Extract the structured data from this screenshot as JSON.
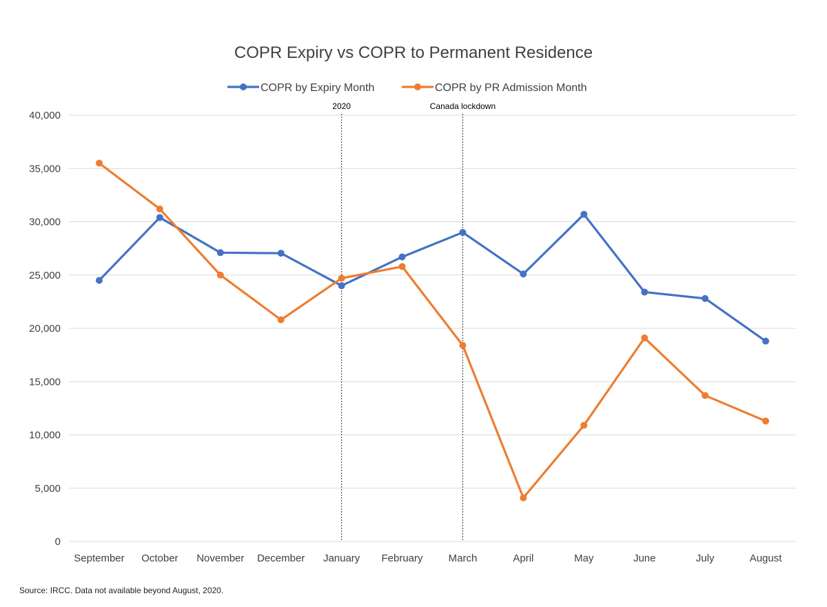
{
  "chart_data": {
    "type": "line",
    "title": "COPR Expiry vs COPR to Permanent Residence",
    "xlabel": "",
    "ylabel": "",
    "categories": [
      "September",
      "October",
      "November",
      "December",
      "January",
      "February",
      "March",
      "April",
      "May",
      "June",
      "July",
      "August"
    ],
    "ylim": [
      0,
      40000
    ],
    "yticks": [
      0,
      5000,
      10000,
      15000,
      20000,
      25000,
      30000,
      35000,
      40000
    ],
    "ytick_labels": [
      "0",
      "5,000",
      "10,000",
      "15,000",
      "20,000",
      "25,000",
      "30,000",
      "35,000",
      "40,000"
    ],
    "grid": true,
    "legend_position": "top-center",
    "series": [
      {
        "name": "COPR by Expiry Month",
        "color": "#4472C4",
        "values": [
          24500,
          30400,
          27100,
          27050,
          24000,
          26700,
          29000,
          25100,
          30700,
          23400,
          22800,
          18800
        ]
      },
      {
        "name": "COPR by PR Admission Month",
        "color": "#ED7D31",
        "values": [
          35500,
          31200,
          25000,
          20800,
          24700,
          25800,
          18400,
          4100,
          10900,
          19100,
          13700,
          11300
        ]
      }
    ],
    "annotations": [
      {
        "text": "2020",
        "category": "January"
      },
      {
        "text": "Canada lockdown",
        "category": "March"
      }
    ]
  },
  "source": "Source: IRCC. Data not available beyond August, 2020."
}
